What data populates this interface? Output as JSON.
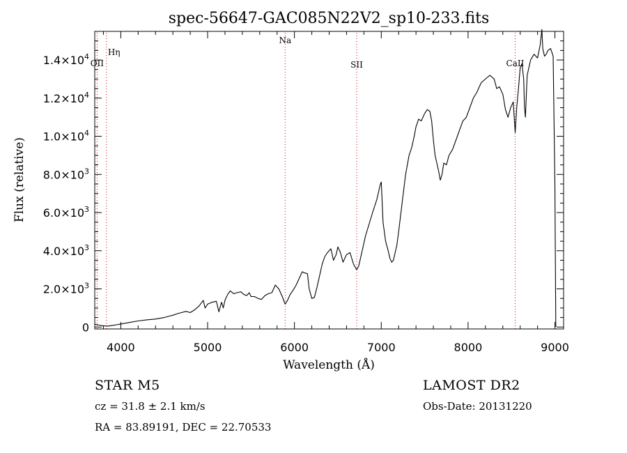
{
  "chart_data": {
    "type": "line",
    "title": "spec-56647-GAC085N22V2_sp10-233.fits",
    "xlabel": "Wavelength (Å)",
    "ylabel": "Flux (relative)",
    "xlim": [
      3700,
      9100
    ],
    "ylim": [
      -100,
      15500
    ],
    "x_ticks": [
      4000,
      5000,
      6000,
      7000,
      8000,
      9000
    ],
    "y_ticks": [
      {
        "value": 0,
        "mantissa": "0",
        "exp": ""
      },
      {
        "value": 2000,
        "mantissa": "2.0×10",
        "exp": "3"
      },
      {
        "value": 4000,
        "mantissa": "4.0×10",
        "exp": "3"
      },
      {
        "value": 6000,
        "mantissa": "6.0×10",
        "exp": "3"
      },
      {
        "value": 8000,
        "mantissa": "8.0×10",
        "exp": "3"
      },
      {
        "value": 10000,
        "mantissa": "1.0×10",
        "exp": "4"
      },
      {
        "value": 12000,
        "mantissa": "1.2×10",
        "exp": "4"
      },
      {
        "value": 14000,
        "mantissa": "1.4×10",
        "exp": "4"
      }
    ],
    "grid": false,
    "line_color": "#000000",
    "marker_color": "#cc0000",
    "lines": [
      {
        "label": "Hη",
        "x": 3835,
        "label_row": 0
      },
      {
        "label": "OII",
        "x": 3727,
        "label_row": 1
      },
      {
        "label": "Na",
        "x": 5893,
        "label_row": 0
      },
      {
        "label": "SII",
        "x": 6717,
        "label_row": 2
      },
      {
        "label": "CaII",
        "x": 8542,
        "label_row": 1
      }
    ],
    "series": [
      {
        "x": [
          3700,
          3750,
          3800,
          3850,
          3900,
          3950,
          4000,
          4100,
          4200,
          4300,
          4400,
          4500,
          4550,
          4600,
          4650,
          4700,
          4750,
          4800,
          4850,
          4900,
          4950,
          4970,
          5000,
          5050,
          5100,
          5130,
          5160,
          5180,
          5200,
          5230,
          5260,
          5300,
          5340,
          5380,
          5420,
          5450,
          5480,
          5500,
          5540,
          5580,
          5620,
          5660,
          5700,
          5740,
          5780,
          5820,
          5860,
          5893,
          5920,
          5950,
          5980,
          6020,
          6060,
          6090,
          6110,
          6150,
          6170,
          6200,
          6230,
          6260,
          6290,
          6320,
          6350,
          6380,
          6420,
          6450,
          6480,
          6500,
          6530,
          6560,
          6600,
          6640,
          6680,
          6717,
          6740,
          6780,
          6820,
          6860,
          6900,
          6950,
          6990,
          7000,
          7020,
          7050,
          7080,
          7100,
          7120,
          7140,
          7160,
          7180,
          7200,
          7240,
          7280,
          7320,
          7350,
          7380,
          7400,
          7430,
          7460,
          7500,
          7530,
          7560,
          7580,
          7600,
          7620,
          7640,
          7660,
          7680,
          7700,
          7720,
          7750,
          7780,
          7820,
          7860,
          7900,
          7940,
          7980,
          8020,
          8060,
          8100,
          8150,
          8200,
          8250,
          8300,
          8330,
          8360,
          8400,
          8430,
          8460,
          8490,
          8520,
          8542,
          8560,
          8580,
          8600,
          8620,
          8640,
          8650,
          8660,
          8680,
          8720,
          8760,
          8800,
          8830,
          8850,
          8860,
          8880,
          8900,
          8920,
          8950,
          8980,
          9000,
          9010
        ],
        "y": [
          150,
          100,
          60,
          50,
          80,
          120,
          160,
          240,
          320,
          380,
          420,
          500,
          560,
          620,
          700,
          760,
          820,
          760,
          900,
          1100,
          1400,
          1000,
          1200,
          1300,
          1350,
          800,
          1300,
          1000,
          1400,
          1700,
          1900,
          1750,
          1800,
          1850,
          1700,
          1650,
          1800,
          1600,
          1600,
          1500,
          1450,
          1650,
          1750,
          1800,
          2200,
          2000,
          1600,
          1200,
          1400,
          1700,
          1900,
          2200,
          2600,
          2900,
          2850,
          2800,
          2000,
          1500,
          1550,
          2100,
          2700,
          3300,
          3700,
          3900,
          4100,
          3500,
          3800,
          4200,
          3900,
          3400,
          3800,
          3900,
          3300,
          3000,
          3200,
          4000,
          4800,
          5400,
          6000,
          6700,
          7500,
          7600,
          5500,
          4500,
          4000,
          3600,
          3400,
          3500,
          3900,
          4300,
          5000,
          6500,
          8000,
          9000,
          9400,
          10000,
          10500,
          10900,
          10800,
          11200,
          11400,
          11300,
          10800,
          9800,
          9000,
          8600,
          8200,
          7700,
          8000,
          8600,
          8500,
          9000,
          9300,
          9800,
          10300,
          10800,
          11000,
          11500,
          12000,
          12300,
          12800,
          13000,
          13200,
          13000,
          12500,
          12600,
          12200,
          11400,
          11000,
          11500,
          11800,
          10200,
          11500,
          12500,
          13600,
          13800,
          13000,
          11500,
          11000,
          13200,
          14000,
          14300,
          14100,
          14800,
          15600,
          14600,
          14200,
          14300,
          14500,
          14600,
          14200,
          7500,
          0
        ]
      }
    ]
  },
  "footer": {
    "object": "STAR   M5",
    "cz": "cz = 31.8 ± 2.1 km/s",
    "coords": "RA =  83.89191, DEC =  22.70533",
    "survey": "LAMOST DR2",
    "obs_date": "Obs-Date: 20131220"
  }
}
